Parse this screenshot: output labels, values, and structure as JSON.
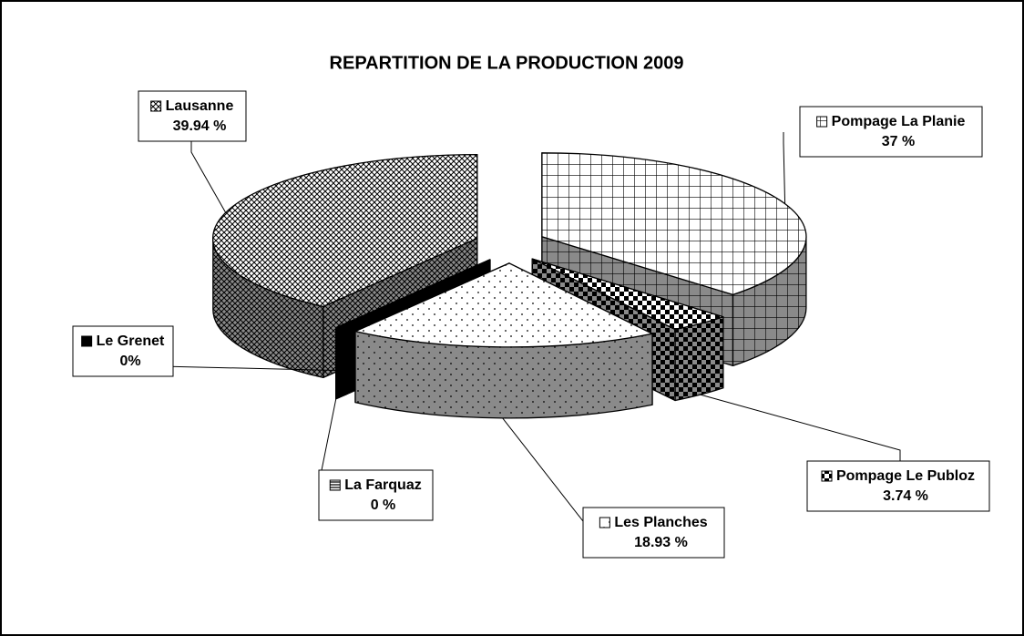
{
  "chart_data": {
    "type": "pie3d",
    "title": "REPARTITION DE LA PRODUCTION 2009",
    "categories": [
      "Pompage La Planie",
      "Pompage Le Publoz",
      "Les Planches",
      "La Farquaz",
      "Le Grenet",
      "Lausanne"
    ],
    "values": [
      37,
      3.74,
      18.93,
      0,
      0,
      39.94
    ],
    "value_labels": [
      "37 %",
      "3.74 %",
      "18.93 %",
      "0 %",
      "0%",
      "39.94 %"
    ],
    "colors": [
      "#ffffff",
      "#ffffff",
      "#ffffff",
      "#ffffff",
      "#000000",
      "#ffffff"
    ],
    "start_angle": 0,
    "exploded": true
  }
}
